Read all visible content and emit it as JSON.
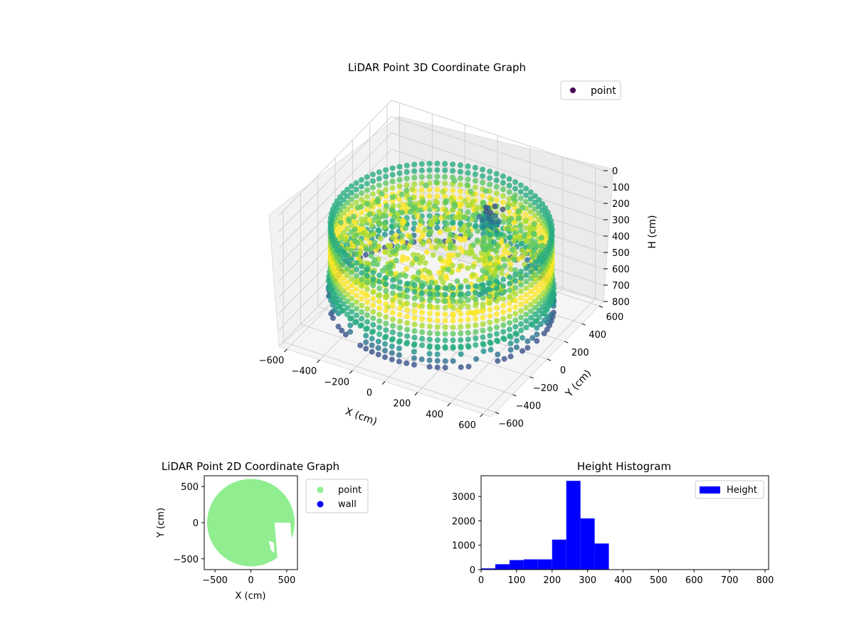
{
  "chart_data": [
    {
      "type": "scatter",
      "dimension": "3d",
      "title": "LiDAR Point 3D Coordinate Graph",
      "xlabel": "X (cm)",
      "ylabel": "Y (cm)",
      "zlabel": "H (cm)",
      "x_ticks": [
        -600,
        -400,
        -200,
        0,
        200,
        400,
        600
      ],
      "y_ticks": [
        -600,
        -400,
        -200,
        0,
        200,
        400,
        600
      ],
      "z_ticks": [
        0,
        100,
        200,
        300,
        400,
        500,
        600,
        700,
        800
      ],
      "xlim": [
        -650,
        650
      ],
      "ylim": [
        -650,
        650
      ],
      "zlim": [
        800,
        0
      ],
      "z_inverted": true,
      "colormap": "viridis",
      "grid": true,
      "legend": {
        "placement": "top-right",
        "entries": [
          "point"
        ]
      },
      "series": [
        {
          "name": "point",
          "color": "#440154",
          "description_points": [
            {
              "shape": "ring",
              "radius": 600,
              "h_range": [
                200,
                560
              ]
            },
            {
              "shape": "ring",
              "radius": 610,
              "h_range": [
                560,
                680
              ]
            },
            {
              "shape": "floor",
              "radius_max": 560,
              "h_range": [
                260,
                420
              ]
            },
            {
              "shape": "column",
              "x": 250,
              "y": 100,
              "h_range": [
                80,
                600
              ]
            }
          ]
        }
      ]
    },
    {
      "type": "scatter",
      "title": "LiDAR Point 2D Coordinate Graph",
      "xlabel": "X (cm)",
      "ylabel": "Y (cm)",
      "x_ticks": [
        -500,
        0,
        500
      ],
      "y_ticks": [
        -500,
        0,
        500
      ],
      "xlim": [
        -650,
        650
      ],
      "ylim": [
        -650,
        650
      ],
      "legend": {
        "placement": "outside-right",
        "entries": [
          "point",
          "wall"
        ]
      },
      "series": [
        {
          "name": "point",
          "color": "#90ee90",
          "shape": "disc",
          "center": [
            0,
            0
          ],
          "radius": 610,
          "gaps": [
            [
              [
                330,
                0
              ],
              [
                550,
                0
              ],
              [
                580,
                -380
              ],
              [
                460,
                -600
              ],
              [
                370,
                -480
              ]
            ],
            [
              [
                250,
                -250
              ],
              [
                320,
                -280
              ],
              [
                330,
                -420
              ],
              [
                280,
                -380
              ]
            ]
          ]
        },
        {
          "name": "wall",
          "color": "#0000ff",
          "points": []
        }
      ]
    },
    {
      "type": "bar",
      "subtype": "histogram",
      "title": "Height Histogram",
      "xlabel": "",
      "ylabel": "",
      "x_ticks": [
        0,
        100,
        200,
        300,
        400,
        500,
        600,
        700,
        800
      ],
      "y_ticks": [
        0,
        1000,
        2000,
        3000
      ],
      "xlim": [
        0,
        810
      ],
      "ylim": [
        0,
        3850
      ],
      "color": "#0000ff",
      "legend": {
        "placement": "top-right",
        "entries": [
          "Height"
        ]
      },
      "series": [
        {
          "name": "Height",
          "bin_edges": [
            0,
            40,
            80,
            120,
            160,
            200,
            240,
            280,
            320,
            360,
            400,
            440,
            480,
            520,
            560,
            600,
            640,
            680,
            720,
            760,
            800
          ],
          "counts": [
            50,
            220,
            390,
            420,
            420,
            1230,
            3640,
            2100,
            1070,
            0,
            0,
            0,
            0,
            0,
            0,
            0,
            0,
            0,
            0,
            0
          ]
        }
      ]
    }
  ]
}
